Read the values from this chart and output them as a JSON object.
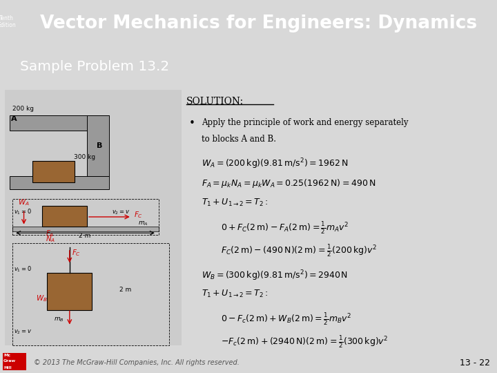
{
  "title": "Vector Mechanics for Engineers: Dynamics",
  "subtitle": "Sample Problem 13.2",
  "header_bg": "#4a6fa5",
  "subheader_bg": "#5a8a5a",
  "content_bg": "#d8d8d8",
  "footer_text": "© 2013 The McGraw-Hill Companies, Inc. All rights reserved.",
  "page_num": "13 - 22",
  "edition_text": "Tenth\nEdition",
  "solution_text": "SOLUTION:",
  "bullet_line1": "Apply the principle of work and energy separately",
  "bullet_line2": "to blocks A and B.",
  "eq1": "$W_A = (200\\,\\mathrm{kg})(9.81\\,\\mathrm{m/s^2}) = 1962\\,\\mathrm{N}$",
  "eq2": "$F_A = \\mu_k N_A = \\mu_k W_A = 0.25(1962\\,\\mathrm{N}) = 490\\,\\mathrm{N}$",
  "eq3": "$T_1 + U_{1\\rightarrow2} = T_2:$",
  "eq4": "$0 + F_C(2\\,\\mathrm{m}) - F_A(2\\,\\mathrm{m}) = \\frac{1}{2}m_A v^2$",
  "eq5": "$F_C(2\\,\\mathrm{m}) - (490\\,\\mathrm{N})(2\\,\\mathrm{m}) = \\frac{1}{2}(200\\,\\mathrm{kg})v^2$",
  "eq6": "$W_B = (300\\,\\mathrm{kg})(9.81\\,\\mathrm{m/s^2}) = 2940\\,\\mathrm{N}$",
  "eq7": "$T_1 + U_{1\\rightarrow2} = T_2:$",
  "eq8": "$0 - F_c(2\\,\\mathrm{m}) + W_B(2\\,\\mathrm{m}) = \\frac{1}{2}m_B v^2$",
  "eq9": "$-F_c(2\\,\\mathrm{m}) + (2940\\,\\mathrm{N})(2\\,\\mathrm{m}) = \\frac{1}{2}(300\\,\\mathrm{kg})v^2$"
}
